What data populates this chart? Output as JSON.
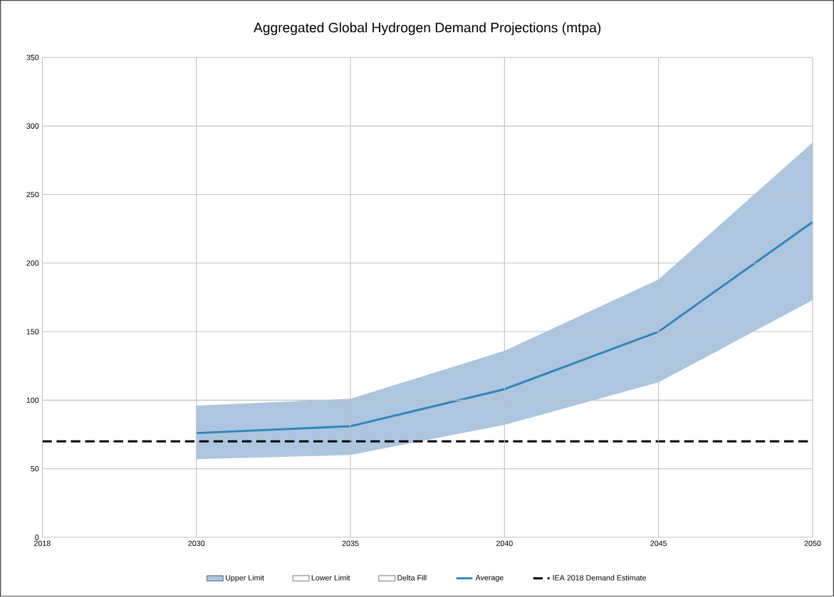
{
  "chart_data": {
    "type": "area",
    "title": "Aggregated Global Hydrogen Demand Projections (mtpa)",
    "categories": [
      "2018",
      "2030",
      "2035",
      "2040",
      "2045",
      "2050"
    ],
    "series": [
      {
        "name": "Upper Limit",
        "color": "#adc5df",
        "values": [
          null,
          null,
          null,
          null,
          null,
          null
        ]
      },
      {
        "name": "Lower Limit",
        "color": "#ffffff",
        "values": [
          null,
          null,
          null,
          null,
          null,
          null
        ]
      },
      {
        "name": "Delta Fill",
        "color": "#ffffff",
        "values": [
          null,
          null,
          null,
          null,
          null,
          null
        ]
      },
      {
        "name": "Average",
        "type": "line",
        "color": "#2e86b9",
        "values": [
          null,
          76,
          81,
          108,
          150,
          230
        ],
        "lower": [
          null,
          57,
          60,
          82,
          113,
          173
        ],
        "upper": [
          null,
          96,
          101,
          136,
          188,
          288
        ]
      }
    ],
    "ref_lines": [
      {
        "axis": "y",
        "value": 70,
        "label": "IEA 2018 Demand Estimate",
        "color": "#000000",
        "line_style": "dashed"
      }
    ],
    "ylim": [
      0,
      350
    ],
    "yticks": [
      0,
      50,
      100,
      150,
      200,
      250,
      300,
      350
    ],
    "grid": true,
    "legend": "bottom"
  }
}
